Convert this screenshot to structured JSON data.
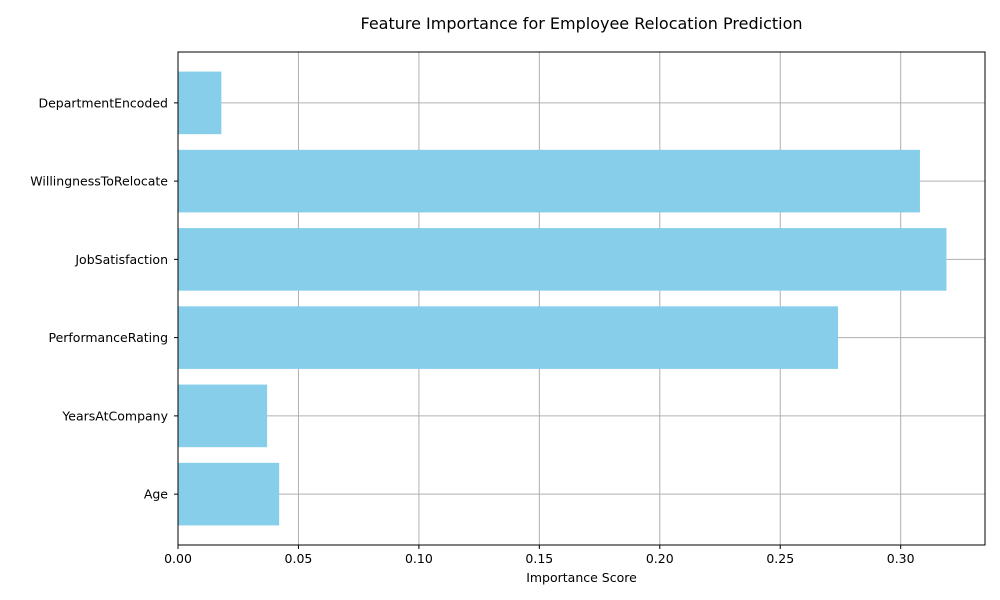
{
  "chart_data": {
    "type": "bar",
    "orientation": "horizontal",
    "title": "Feature Importance for Employee Relocation Prediction",
    "xlabel": "Importance Score",
    "ylabel": "",
    "categories": [
      "Age",
      "YearsAtCompany",
      "PerformanceRating",
      "JobSatisfaction",
      "WillingnessToRelocate",
      "DepartmentEncoded"
    ],
    "values": [
      0.042,
      0.037,
      0.274,
      0.319,
      0.308,
      0.018
    ],
    "xlim": [
      0,
      0.335
    ],
    "xticks": [
      0.0,
      0.05,
      0.1,
      0.15,
      0.2,
      0.25,
      0.3
    ],
    "xtick_labels": [
      "0.00",
      "0.05",
      "0.10",
      "0.15",
      "0.20",
      "0.25",
      "0.30"
    ],
    "grid": true,
    "bar_color": "#87ceeb",
    "grid_color": "#b0b0b0"
  }
}
